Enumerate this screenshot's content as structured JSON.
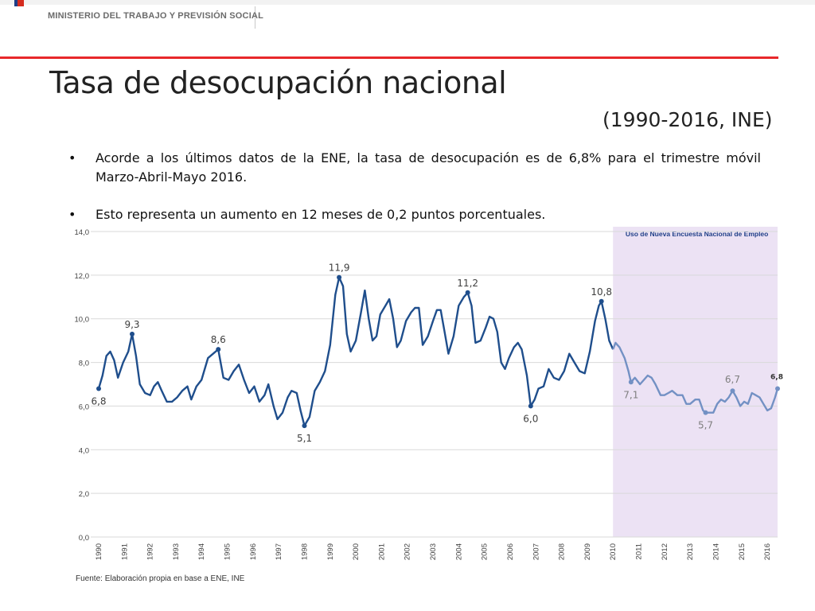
{
  "header": {
    "ministry": "MINISTERIO DEL TRABAJO Y PREVISIÓN SOCIAL",
    "accent_color": "#e8282b"
  },
  "slide": {
    "title": "Tasa de desocupación nacional",
    "subtitle": "(1990-2016, INE)",
    "bullets": [
      "Acorde a los últimos datos de la ENE, la tasa de desocupación es de 6,8% para el trimestre móvil Marzo-Abril-Mayo 2016.",
      "Esto representa un aumento en 12 meses de 0,2 puntos porcentuales."
    ],
    "bullet_symbol": "•",
    "source": "Fuente: Elaboración propia en base a ENE, INE"
  },
  "chart_data": {
    "type": "line",
    "ylim": [
      0,
      14
    ],
    "y_ticks": [
      "0,0",
      "2,0",
      "4,0",
      "6,0",
      "8,0",
      "10,0",
      "12,0",
      "14,0"
    ],
    "x_ticks": [
      "1990",
      "1991",
      "1992",
      "1993",
      "1994",
      "1995",
      "1996",
      "1997",
      "1998",
      "1999",
      "2000",
      "2001",
      "2002",
      "2003",
      "2004",
      "2005",
      "2006",
      "2007",
      "2008",
      "2009",
      "2010",
      "2011",
      "2012",
      "2013",
      "2014",
      "2015",
      "2016"
    ],
    "xlim": [
      1990,
      2016.4
    ],
    "shaded_region": {
      "from": 2010,
      "to": 2016.4,
      "label": "Uso de Nueva Encuesta Nacional de Empleo",
      "color": "#ece2f4"
    },
    "grid": "horizontal",
    "series": [
      {
        "segment": "ENE",
        "color": "#1f4e8c",
        "points": [
          [
            1990.0,
            6.8
          ],
          [
            1990.15,
            7.4
          ],
          [
            1990.3,
            8.3
          ],
          [
            1990.45,
            8.5
          ],
          [
            1990.6,
            8.1
          ],
          [
            1990.75,
            7.3
          ],
          [
            1990.95,
            8.0
          ],
          [
            1991.15,
            8.5
          ],
          [
            1991.3,
            9.3
          ],
          [
            1991.45,
            8.3
          ],
          [
            1991.6,
            7.0
          ],
          [
            1991.8,
            6.6
          ],
          [
            1992.0,
            6.5
          ],
          [
            1992.15,
            6.9
          ],
          [
            1992.3,
            7.1
          ],
          [
            1992.45,
            6.7
          ],
          [
            1992.65,
            6.2
          ],
          [
            1992.85,
            6.2
          ],
          [
            1993.05,
            6.4
          ],
          [
            1993.25,
            6.7
          ],
          [
            1993.45,
            6.9
          ],
          [
            1993.6,
            6.3
          ],
          [
            1993.8,
            6.9
          ],
          [
            1994.0,
            7.2
          ],
          [
            1994.25,
            8.2
          ],
          [
            1994.45,
            8.4
          ],
          [
            1994.65,
            8.6
          ],
          [
            1994.85,
            7.3
          ],
          [
            1995.05,
            7.2
          ],
          [
            1995.25,
            7.6
          ],
          [
            1995.45,
            7.9
          ],
          [
            1995.65,
            7.2
          ],
          [
            1995.85,
            6.6
          ],
          [
            1996.05,
            6.9
          ],
          [
            1996.25,
            6.2
          ],
          [
            1996.45,
            6.5
          ],
          [
            1996.6,
            7.0
          ],
          [
            1996.8,
            6.0
          ],
          [
            1996.95,
            5.4
          ],
          [
            1997.15,
            5.7
          ],
          [
            1997.35,
            6.4
          ],
          [
            1997.5,
            6.7
          ],
          [
            1997.7,
            6.6
          ],
          [
            1997.85,
            5.8
          ],
          [
            1998.0,
            5.1
          ],
          [
            1998.2,
            5.5
          ],
          [
            1998.4,
            6.7
          ],
          [
            1998.6,
            7.1
          ],
          [
            1998.8,
            7.6
          ],
          [
            1999.0,
            8.8
          ],
          [
            1999.2,
            11.1
          ],
          [
            1999.35,
            11.9
          ],
          [
            1999.5,
            11.5
          ],
          [
            1999.65,
            9.3
          ],
          [
            1999.8,
            8.5
          ],
          [
            2000.0,
            9.0
          ],
          [
            2000.2,
            10.3
          ],
          [
            2000.35,
            11.3
          ],
          [
            2000.5,
            10.0
          ],
          [
            2000.65,
            9.0
          ],
          [
            2000.8,
            9.2
          ],
          [
            2000.95,
            10.2
          ],
          [
            2001.15,
            10.6
          ],
          [
            2001.3,
            10.9
          ],
          [
            2001.45,
            10.0
          ],
          [
            2001.6,
            8.7
          ],
          [
            2001.75,
            9.0
          ],
          [
            2001.95,
            9.9
          ],
          [
            2002.15,
            10.3
          ],
          [
            2002.3,
            10.5
          ],
          [
            2002.45,
            10.5
          ],
          [
            2002.6,
            8.8
          ],
          [
            2002.8,
            9.2
          ],
          [
            2003.0,
            9.9
          ],
          [
            2003.15,
            10.4
          ],
          [
            2003.3,
            10.4
          ],
          [
            2003.45,
            9.4
          ],
          [
            2003.6,
            8.4
          ],
          [
            2003.8,
            9.2
          ],
          [
            2004.0,
            10.6
          ],
          [
            2004.2,
            11.0
          ],
          [
            2004.35,
            11.2
          ],
          [
            2004.5,
            10.6
          ],
          [
            2004.65,
            8.9
          ],
          [
            2004.85,
            9.0
          ],
          [
            2005.05,
            9.6
          ],
          [
            2005.2,
            10.1
          ],
          [
            2005.35,
            10.0
          ],
          [
            2005.5,
            9.4
          ],
          [
            2005.65,
            8.0
          ],
          [
            2005.8,
            7.7
          ],
          [
            2005.95,
            8.2
          ],
          [
            2006.15,
            8.7
          ],
          [
            2006.3,
            8.9
          ],
          [
            2006.45,
            8.6
          ],
          [
            2006.65,
            7.4
          ],
          [
            2006.8,
            6.0
          ],
          [
            2006.95,
            6.3
          ],
          [
            2007.1,
            6.8
          ],
          [
            2007.3,
            6.9
          ],
          [
            2007.5,
            7.7
          ],
          [
            2007.7,
            7.3
          ],
          [
            2007.9,
            7.2
          ],
          [
            2008.1,
            7.6
          ],
          [
            2008.3,
            8.4
          ],
          [
            2008.5,
            8.0
          ],
          [
            2008.7,
            7.6
          ],
          [
            2008.9,
            7.5
          ],
          [
            2009.1,
            8.5
          ],
          [
            2009.3,
            9.9
          ],
          [
            2009.45,
            10.6
          ],
          [
            2009.55,
            10.8
          ],
          [
            2009.7,
            10.0
          ],
          [
            2009.85,
            9.0
          ],
          [
            2010.0,
            8.6
          ]
        ]
      },
      {
        "segment": "NENE",
        "color": "#7391c4",
        "points": [
          [
            2010.0,
            8.6
          ],
          [
            2010.1,
            8.9
          ],
          [
            2010.25,
            8.7
          ],
          [
            2010.45,
            8.2
          ],
          [
            2010.6,
            7.6
          ],
          [
            2010.7,
            7.1
          ],
          [
            2010.85,
            7.3
          ],
          [
            2011.05,
            7.0
          ],
          [
            2011.2,
            7.2
          ],
          [
            2011.35,
            7.4
          ],
          [
            2011.5,
            7.3
          ],
          [
            2011.65,
            7.0
          ],
          [
            2011.85,
            6.5
          ],
          [
            2012.0,
            6.5
          ],
          [
            2012.15,
            6.6
          ],
          [
            2012.3,
            6.7
          ],
          [
            2012.5,
            6.5
          ],
          [
            2012.7,
            6.5
          ],
          [
            2012.85,
            6.1
          ],
          [
            2013.0,
            6.1
          ],
          [
            2013.2,
            6.3
          ],
          [
            2013.35,
            6.3
          ],
          [
            2013.5,
            5.8
          ],
          [
            2013.6,
            5.7
          ],
          [
            2013.75,
            5.7
          ],
          [
            2013.9,
            5.7
          ],
          [
            2014.05,
            6.1
          ],
          [
            2014.2,
            6.3
          ],
          [
            2014.35,
            6.2
          ],
          [
            2014.5,
            6.4
          ],
          [
            2014.65,
            6.7
          ],
          [
            2014.8,
            6.4
          ],
          [
            2014.95,
            6.0
          ],
          [
            2015.1,
            6.2
          ],
          [
            2015.25,
            6.1
          ],
          [
            2015.4,
            6.6
          ],
          [
            2015.55,
            6.5
          ],
          [
            2015.7,
            6.4
          ],
          [
            2015.85,
            6.1
          ],
          [
            2016.0,
            5.8
          ],
          [
            2016.15,
            5.9
          ],
          [
            2016.3,
            6.4
          ],
          [
            2016.4,
            6.8
          ]
        ]
      }
    ],
    "highlighted_points": [
      {
        "x": 1990.0,
        "y": 6.8,
        "label": "6,8"
      },
      {
        "x": 1991.3,
        "y": 9.3,
        "label": "9,3"
      },
      {
        "x": 1994.65,
        "y": 8.6,
        "label": "8,6"
      },
      {
        "x": 1998.0,
        "y": 5.1,
        "label": "5,1"
      },
      {
        "x": 1999.35,
        "y": 11.9,
        "label": "11,9"
      },
      {
        "x": 2004.35,
        "y": 11.2,
        "label": "11,2"
      },
      {
        "x": 2006.8,
        "y": 6.0,
        "label": "6,0"
      },
      {
        "x": 2009.55,
        "y": 10.8,
        "label": "10,8"
      },
      {
        "x": 2010.7,
        "y": 7.1,
        "label": "7,1"
      },
      {
        "x": 2013.6,
        "y": 5.7,
        "label": "5,7"
      },
      {
        "x": 2014.65,
        "y": 6.7,
        "label": "6,7"
      },
      {
        "x": 2016.4,
        "y": 6.8,
        "label": "6,8"
      }
    ]
  }
}
